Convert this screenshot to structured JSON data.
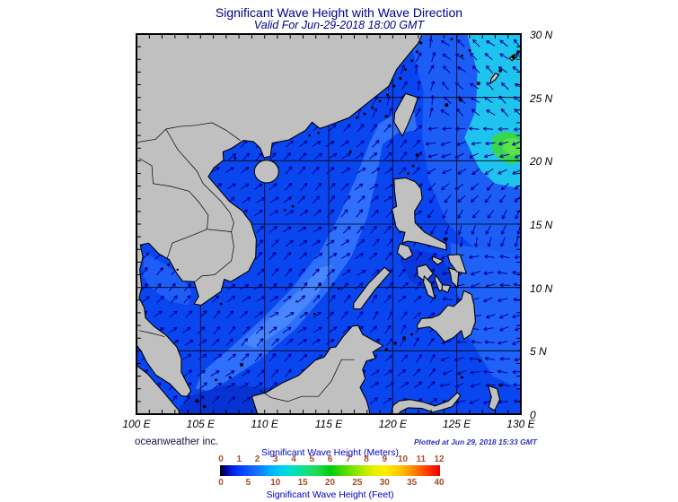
{
  "title": "Significant Wave Height with Wave Direction",
  "subtitle": "Valid For Jun-29-2018 18:00 GMT",
  "credit": "oceanweather inc.",
  "plotted_at": "Plotted at Jun 29, 2018 15:33 GMT",
  "axes": {
    "lon_ticks": [
      "100 E",
      "105 E",
      "110 E",
      "115 E",
      "120 E",
      "125 E",
      "130 E"
    ],
    "lat_ticks": [
      "30 N",
      "25 N",
      "20 N",
      "15 N",
      "10 N",
      "5 N",
      "0"
    ]
  },
  "colorbar": {
    "meters_label": "Significant Wave Height (Meters)",
    "feet_label": "Significant Wave Height (Feet)",
    "meters_ticks": [
      "0",
      "1",
      "2",
      "3",
      "4",
      "5",
      "6",
      "7",
      "8",
      "9",
      "10",
      "11",
      "12"
    ],
    "feet_ticks": [
      "0",
      "5",
      "10",
      "15",
      "20",
      "25",
      "30",
      "35",
      "40"
    ],
    "gradient": [
      [
        0,
        "#000000"
      ],
      [
        2.5,
        "#000099"
      ],
      [
        6,
        "#0026e6"
      ],
      [
        9,
        "#0040ff"
      ],
      [
        16,
        "#1a6aff"
      ],
      [
        22,
        "#00a8ff"
      ],
      [
        27,
        "#00ccf5"
      ],
      [
        32,
        "#00e0cc"
      ],
      [
        38,
        "#14e08a"
      ],
      [
        44,
        "#1edc50"
      ],
      [
        50,
        "#00cc11"
      ],
      [
        57,
        "#55dd00"
      ],
      [
        64,
        "#a8e800"
      ],
      [
        70,
        "#e8f000"
      ],
      [
        75,
        "#ffee00"
      ],
      [
        82,
        "#ffc400"
      ],
      [
        87,
        "#ff9100"
      ],
      [
        92,
        "#ff5500"
      ],
      [
        97,
        "#ff1a00"
      ],
      [
        100,
        "#e60000"
      ]
    ]
  },
  "colors": {
    "title_text": "#00008b",
    "tick_number_text": "#a84f28",
    "land": "#c0c0c0",
    "coastline": "#000000",
    "ocean_base": "#0a46ef",
    "scs_band": "#2e6ffb",
    "scs_band_core": "#4886ff",
    "pacific_light": "#1c5df5",
    "pacific_cyan": "#1fc4ee",
    "storm_green": "#38d650",
    "storm_green_core": "#58e34a",
    "shallow_dark": "#0733d2",
    "arrow": "#000099",
    "grid": "#000000"
  },
  "chart_data": {
    "type": "heatmap",
    "title": "Significant Wave Height with Wave Direction",
    "valid_time": "Jun-29-2018 18:00 GMT",
    "plotted_time": "Jun 29, 2018 15:33 GMT",
    "region": {
      "lon_range_deg_E": [
        100,
        130
      ],
      "lat_range_deg_N": [
        0,
        30
      ]
    },
    "x_ticks": [
      "100 E",
      "105 E",
      "110 E",
      "115 E",
      "120 E",
      "125 E",
      "130 E"
    ],
    "y_ticks": [
      "0",
      "5 N",
      "10 N",
      "15 N",
      "20 N",
      "25 N",
      "30 N"
    ],
    "colorbar_meters": [
      0,
      1,
      2,
      3,
      4,
      5,
      6,
      7,
      8,
      9,
      10,
      11,
      12
    ],
    "colorbar_feet": [
      0,
      5,
      10,
      15,
      20,
      25,
      30,
      35,
      40
    ],
    "palette": "black at 0 then jet-like blue-cyan-green-yellow-orange-red to 12 m",
    "values": [
      {
        "area": "South China Sea central SW-NE band (approx 108E,4N to 120E,21N)",
        "approx_hs_m": 2.5,
        "wave_direction": "toward NE (southwest monsoon)"
      },
      {
        "area": "Philippine Sea / NW Pacific eastern band (lon > 126E, lat 18-30N)",
        "approx_hs_m": 3.0,
        "wave_direction": "toward W to SW"
      },
      {
        "area": "local maximum near 129E 21N (green patch at right edge)",
        "approx_hs_m": 4.5,
        "wave_direction": "swirling (storm circulation)"
      },
      {
        "area": "NE of Taiwan / East China Sea",
        "approx_hs_m": 2.0,
        "wave_direction": "toward NW offshore, N-NE near China coast"
      },
      {
        "area": "Gulf of Thailand and Gulf of Tonkin",
        "approx_hs_m": 1.5,
        "wave_direction": "toward NE"
      },
      {
        "area": "coastal margins, Java Sea, Malacca Strait, inner Philippine seas",
        "approx_hs_m": 1.0,
        "wave_direction": "toward NE"
      },
      {
        "area": "open-water background elsewhere",
        "approx_hs_m": 1.5,
        "wave_direction": "toward NE"
      }
    ],
    "legend_position": "bottom center, dual scale meters (top) and feet (bottom)",
    "grid": "5-degree graticule over water, 1-degree edge ticks"
  }
}
